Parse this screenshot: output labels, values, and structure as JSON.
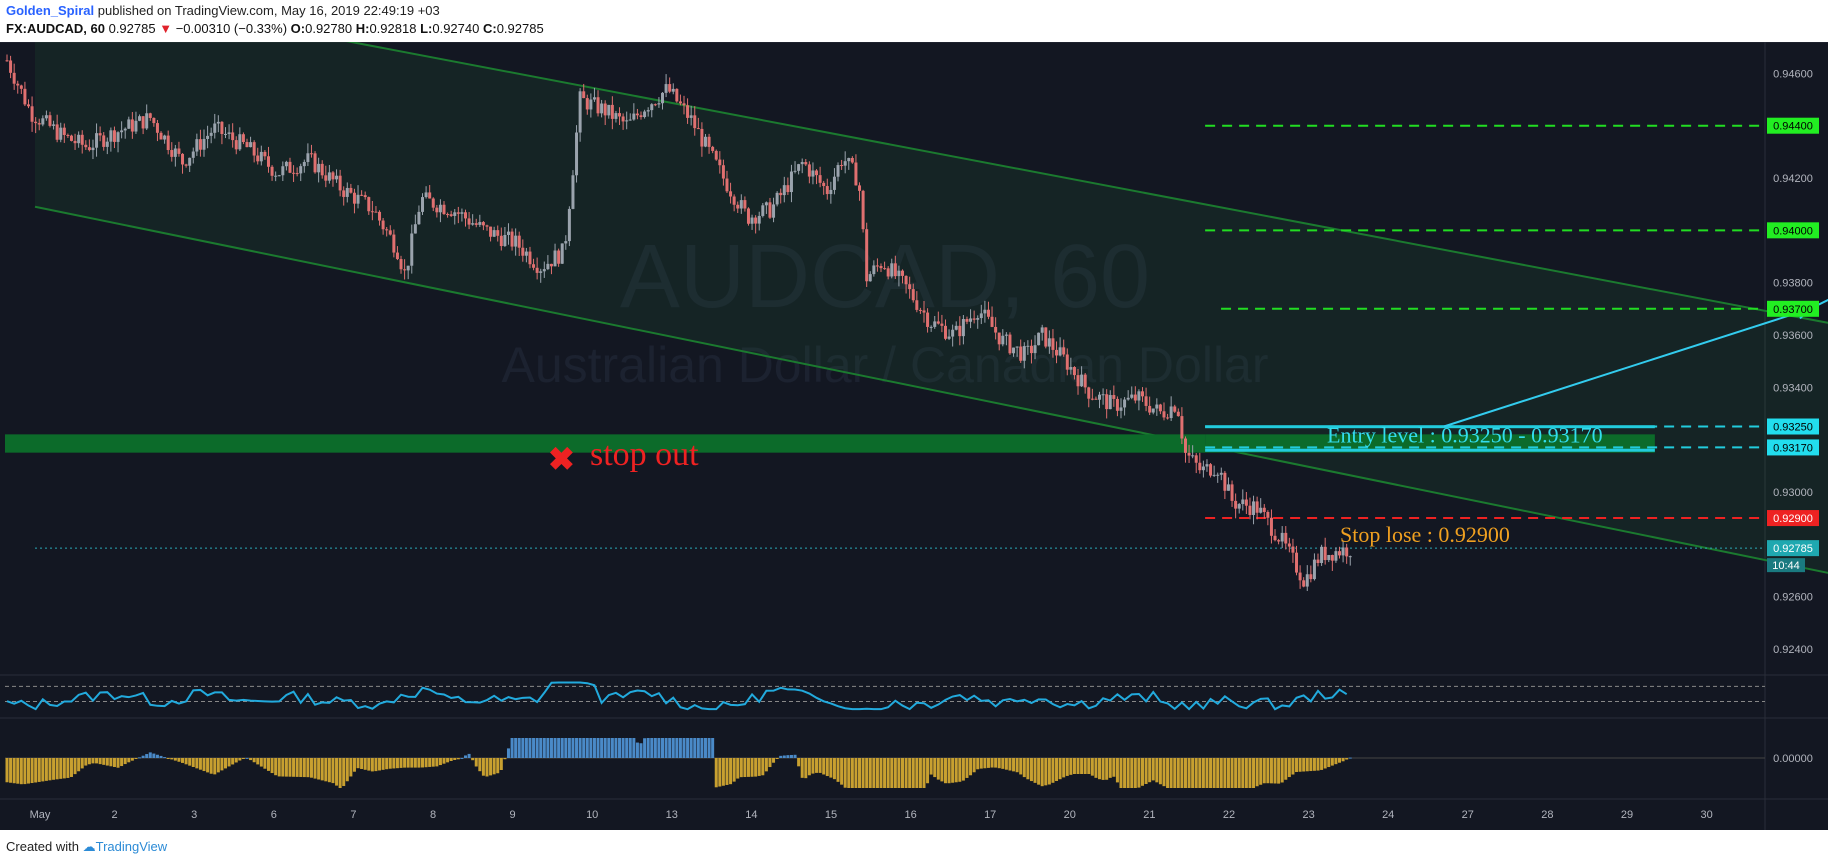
{
  "header": {
    "author": "Golden_Spiral",
    "published_text": "published on TradingView.com, May 16, 2019 22:49:19 +03",
    "symbol": "FX:AUDCAD, 60",
    "last": "0.92785",
    "change": "−0.00310 (−0.33%)",
    "o_label": "O:",
    "o_value": "0.92780",
    "h_label": "H:",
    "h_value": "0.92818",
    "l_label": "L:",
    "l_value": "0.92740",
    "c_label": "C:",
    "c_value": "0.92785"
  },
  "watermark": {
    "symbol": "AUDCAD, 60",
    "name": "Australian Dollar / Canadian Dollar"
  },
  "footer": {
    "created_with": "Created with",
    "brand": "TradingView"
  },
  "colors": {
    "background": "#131722",
    "up": "#9aa3ad",
    "down": "#e07070",
    "channel": "#1b7a2f",
    "zone": "#0c6b2a",
    "target": "#22dd22",
    "entry": "#22ccdd",
    "stop": "#ee2222",
    "projection": "#33ccee",
    "rsi": "#22aadd",
    "macd_pos": "#4a8ac8",
    "macd_neg": "#c8a030"
  },
  "chart_data": {
    "type": "line",
    "title": "",
    "xlabel": "",
    "ylabel": "",
    "ylim": [
      0.923,
      0.9472
    ],
    "x_ticks": [
      "May",
      "2",
      "3",
      "6",
      "7",
      "8",
      "9",
      "10",
      "13",
      "14",
      "15",
      "16",
      "17",
      "20",
      "21",
      "22",
      "23",
      "24",
      "27",
      "28",
      "29",
      "30"
    ],
    "y_ticks": [
      "0.94600",
      "0.94200",
      "0.93800",
      "0.93600",
      "0.93400",
      "0.93000",
      "0.92600",
      "0.92400"
    ],
    "close_path": [
      [
        0,
        0.9465
      ],
      [
        0.3,
        0.9445
      ],
      [
        0.7,
        0.9436
      ],
      [
        1,
        0.9432
      ],
      [
        1.4,
        0.9438
      ],
      [
        1.8,
        0.9443
      ],
      [
        2.2,
        0.9426
      ],
      [
        2.6,
        0.9439
      ],
      [
        3,
        0.9432
      ],
      [
        3.4,
        0.9422
      ],
      [
        3.8,
        0.9427
      ],
      [
        4.2,
        0.9416
      ],
      [
        4.6,
        0.9408
      ],
      [
        4.9,
        0.9393
      ],
      [
        5,
        0.9383
      ],
      [
        5.2,
        0.9412
      ],
      [
        5.6,
        0.9408
      ],
      [
        6,
        0.94
      ],
      [
        6.4,
        0.9395
      ],
      [
        6.7,
        0.9386
      ],
      [
        7,
        0.9392
      ],
      [
        7.2,
        0.945
      ],
      [
        7.5,
        0.9446
      ],
      [
        7.8,
        0.944
      ],
      [
        8,
        0.9447
      ],
      [
        8.3,
        0.9454
      ],
      [
        8.6,
        0.9442
      ],
      [
        9,
        0.942
      ],
      [
        9.3,
        0.9405
      ],
      [
        9.6,
        0.9408
      ],
      [
        10,
        0.9426
      ],
      [
        10.3,
        0.9415
      ],
      [
        10.5,
        0.9428
      ],
      [
        10.7,
        0.9419
      ],
      [
        10.8,
        0.9382
      ],
      [
        11,
        0.9388
      ],
      [
        11.3,
        0.9378
      ],
      [
        11.6,
        0.9365
      ],
      [
        11.9,
        0.936
      ],
      [
        12.2,
        0.937
      ],
      [
        12.5,
        0.9358
      ],
      [
        12.8,
        0.9352
      ],
      [
        13,
        0.936
      ],
      [
        13.3,
        0.935
      ],
      [
        13.6,
        0.9338
      ],
      [
        13.9,
        0.9333
      ],
      [
        14.2,
        0.9336
      ],
      [
        14.5,
        0.933
      ],
      [
        14.7,
        0.9334
      ],
      [
        14.8,
        0.9315
      ],
      [
        15,
        0.9308
      ],
      [
        15.2,
        0.931
      ],
      [
        15.4,
        0.9296
      ],
      [
        15.7,
        0.9294
      ],
      [
        16,
        0.9282
      ],
      [
        16.3,
        0.9266
      ],
      [
        16.5,
        0.9276
      ],
      [
        16.9,
        0.92785
      ]
    ],
    "channel_upper": [
      [
        0,
        0.9495
      ],
      [
        23.5,
        0.9359
      ]
    ],
    "channel_lower": [
      [
        0,
        0.9409
      ],
      [
        23.5,
        0.9263
      ]
    ],
    "support_zone": [
      0.9322,
      0.9315
    ],
    "levels": [
      {
        "value": 0.944,
        "label": "0.94400",
        "kind": "target",
        "x_start": 14.7
      },
      {
        "value": 0.94,
        "label": "0.94000",
        "kind": "target",
        "x_start": 14.7
      },
      {
        "value": 0.937,
        "label": "0.93700",
        "kind": "target",
        "x_start": 14.9
      },
      {
        "value": 0.9325,
        "label": "0.93250",
        "kind": "entry",
        "x_start": 14.7
      },
      {
        "value": 0.9317,
        "label": "0.93170",
        "kind": "entry",
        "x_start": 14.7
      },
      {
        "value": 0.929,
        "label": "0.92900",
        "kind": "stop",
        "x_start": 14.7
      },
      {
        "value": 0.92785,
        "label": "0.92785",
        "kind": "last",
        "x_start": 0
      }
    ],
    "countdown": "10:44",
    "projection": [
      [
        17.7,
        0.9325
      ],
      [
        22.3,
        0.937
      ],
      [
        24.3,
        0.94
      ],
      [
        28.8,
        0.9438
      ]
    ],
    "annotations": {
      "entry": "Entry level : 0.93250 - 0.93170",
      "stop": "Stop lose : 0.92900",
      "stopout": "stop out"
    },
    "rsi_levels": [
      70,
      30
    ],
    "macd_zero_label": "0.00000"
  }
}
